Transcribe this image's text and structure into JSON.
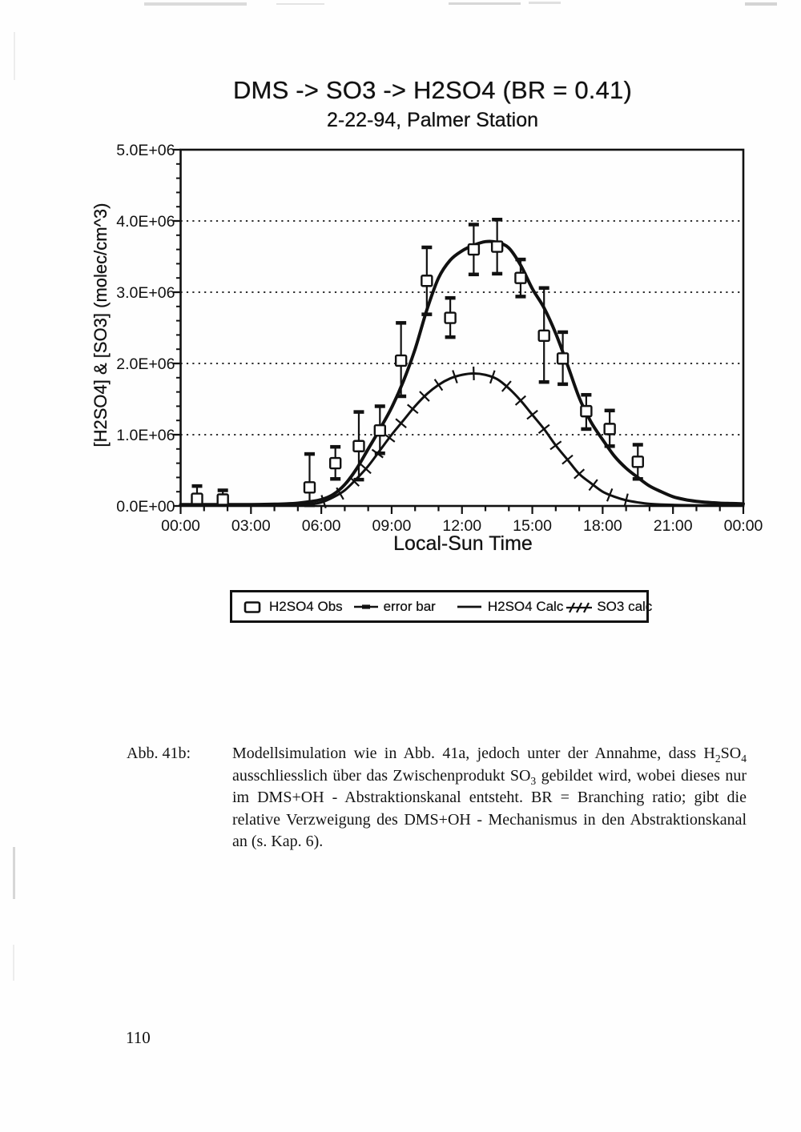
{
  "page": {
    "number": "110"
  },
  "figure": {
    "title": "DMS -> SO3 -> H2SO4 (BR = 0.41)",
    "subtitle": "2-22-94, Palmer Station"
  },
  "chart_data": {
    "type": "line",
    "title": "DMS -> SO3 -> H2SO4 (BR = 0.41)",
    "subtitle": "2-22-94, Palmer Station",
    "xlabel": "Local-Sun Time",
    "ylabel": "[H2SO4] & [SO3] (molec/cm^3)",
    "unit": "molec/cm^3",
    "x_hours_range": [
      0,
      24
    ],
    "ylim": [
      0,
      5000000.0
    ],
    "grid": "horizontal dotted lines at 1.0E+06 steps",
    "x_ticks": [
      {
        "label": "00:00",
        "hour": 0
      },
      {
        "label": "03:00",
        "hour": 3
      },
      {
        "label": "06:00",
        "hour": 6
      },
      {
        "label": "09:00",
        "hour": 9
      },
      {
        "label": "12:00",
        "hour": 12
      },
      {
        "label": "15:00",
        "hour": 15
      },
      {
        "label": "18:00",
        "hour": 18
      },
      {
        "label": "21:00",
        "hour": 21
      },
      {
        "label": "00:00",
        "hour": 24
      }
    ],
    "y_ticks": [
      {
        "label": "0.0E+00",
        "value": 0
      },
      {
        "label": "1.0E+06",
        "value": 1000000.0
      },
      {
        "label": "2.0E+06",
        "value": 2000000.0
      },
      {
        "label": "3.0E+06",
        "value": 3000000.0
      },
      {
        "label": "4.0E+06",
        "value": 4000000.0
      },
      {
        "label": "5.0E+06",
        "value": 5000000.0
      }
    ],
    "series": [
      {
        "name": "H2SO4 Calc",
        "style": "solid-line",
        "points_hour_value": [
          [
            0,
            20000.0
          ],
          [
            1,
            20000.0
          ],
          [
            2,
            20000.0
          ],
          [
            3,
            20000.0
          ],
          [
            4,
            25000.0
          ],
          [
            4.5,
            30000.0
          ],
          [
            5,
            40000.0
          ],
          [
            5.5,
            60000.0
          ],
          [
            6,
            90000.0
          ],
          [
            6.5,
            160000.0
          ],
          [
            7,
            300000.0
          ],
          [
            7.5,
            520000.0
          ],
          [
            8,
            800000.0
          ],
          [
            8.5,
            1080000.0
          ],
          [
            9,
            1380000.0
          ],
          [
            9.5,
            1750000.0
          ],
          [
            10,
            2200000.0
          ],
          [
            10.5,
            2750000.0
          ],
          [
            11,
            3200000.0
          ],
          [
            11.5,
            3450000.0
          ],
          [
            12,
            3580000.0
          ],
          [
            12.5,
            3660000.0
          ],
          [
            13,
            3710000.0
          ],
          [
            13.5,
            3700000.0
          ],
          [
            14,
            3620000.0
          ],
          [
            14.5,
            3380000.0
          ],
          [
            15,
            3050000.0
          ],
          [
            15.5,
            2780000.0
          ],
          [
            16,
            2420000.0
          ],
          [
            16.5,
            1980000.0
          ],
          [
            17,
            1520000.0
          ],
          [
            17.5,
            1180000.0
          ],
          [
            18,
            930000.0
          ],
          [
            18.5,
            700000.0
          ],
          [
            19,
            530000.0
          ],
          [
            19.5,
            400000.0
          ],
          [
            20,
            280000.0
          ],
          [
            20.5,
            200000.0
          ],
          [
            21,
            130000.0
          ],
          [
            21.5,
            90000.0
          ],
          [
            22,
            65000.0
          ],
          [
            22.5,
            50000.0
          ],
          [
            23,
            40000.0
          ],
          [
            23.5,
            35000.0
          ],
          [
            24,
            30000.0
          ]
        ]
      },
      {
        "name": "SO3 calc",
        "style": "hatched-line",
        "points_hour_value": [
          [
            0,
            10000.0
          ],
          [
            2,
            10000.0
          ],
          [
            4,
            10000.0
          ],
          [
            5,
            15000.0
          ],
          [
            5.5,
            25000.0
          ],
          [
            6,
            50000.0
          ],
          [
            6.5,
            120000.0
          ],
          [
            7,
            220000.0
          ],
          [
            7.5,
            380000.0
          ],
          [
            8,
            560000.0
          ],
          [
            8.5,
            780000.0
          ],
          [
            9,
            1000000.0
          ],
          [
            9.5,
            1200000.0
          ],
          [
            10,
            1400000.0
          ],
          [
            10.5,
            1570000.0
          ],
          [
            11,
            1700000.0
          ],
          [
            11.5,
            1790000.0
          ],
          [
            12,
            1840000.0
          ],
          [
            12.5,
            1860000.0
          ],
          [
            13,
            1840000.0
          ],
          [
            13.5,
            1780000.0
          ],
          [
            14,
            1650000.0
          ],
          [
            14.5,
            1480000.0
          ],
          [
            15,
            1280000.0
          ],
          [
            15.5,
            1080000.0
          ],
          [
            16,
            850000.0
          ],
          [
            16.5,
            650000.0
          ],
          [
            17,
            450000.0
          ],
          [
            17.5,
            320000.0
          ],
          [
            18,
            200000.0
          ],
          [
            18.5,
            130000.0
          ],
          [
            19,
            80000.0
          ],
          [
            19.5,
            50000.0
          ],
          [
            20,
            30000.0
          ],
          [
            21,
            15000.0
          ],
          [
            22,
            10000.0
          ],
          [
            23,
            10000.0
          ],
          [
            24,
            10000.0
          ]
        ]
      }
    ],
    "observations": {
      "name": "H2SO4 Obs",
      "marker": "open-square",
      "error_bars": true,
      "points_hour_value_lo_hi": [
        [
          0.7,
          100000.0,
          20000.0,
          280000.0
        ],
        [
          1.8,
          90000.0,
          30000.0,
          220000.0
        ],
        [
          5.5,
          260000.0,
          10000.0,
          730000.0
        ],
        [
          6.6,
          600000.0,
          380000.0,
          830000.0
        ],
        [
          7.6,
          840000.0,
          370000.0,
          1320000.0
        ],
        [
          8.5,
          1060000.0,
          740000.0,
          1400000.0
        ],
        [
          9.4,
          2040000.0,
          1540000.0,
          2570000.0
        ],
        [
          10.5,
          3160000.0,
          2690000.0,
          3630000.0
        ],
        [
          11.5,
          2640000.0,
          2370000.0,
          2920000.0
        ],
        [
          12.5,
          3600000.0,
          3250000.0,
          3950000.0
        ],
        [
          13.5,
          3640000.0,
          3260000.0,
          4020000.0
        ],
        [
          14.5,
          3200000.0,
          2940000.0,
          3460000.0
        ],
        [
          15.5,
          2390000.0,
          1740000.0,
          3060000.0
        ],
        [
          16.3,
          2070000.0,
          1710000.0,
          2440000.0
        ],
        [
          17.3,
          1330000.0,
          1080000.0,
          1560000.0
        ],
        [
          18.3,
          1080000.0,
          840000.0,
          1340000.0
        ],
        [
          19.5,
          620000.0,
          380000.0,
          860000.0
        ]
      ]
    },
    "legend": {
      "position": "below-chart",
      "entries": [
        {
          "marker": "open-square",
          "label": "H2SO4 Obs"
        },
        {
          "marker": "errorbar-line",
          "label": "error bar"
        },
        {
          "marker": "solid-line",
          "label": "H2SO4 Calc"
        },
        {
          "marker": "hatched-line",
          "label": "SO3 calc"
        }
      ]
    },
    "ink_color": "#111111"
  },
  "caption": {
    "label": "Abb. 41b:",
    "lines": [
      [
        {
          "t": "Modellsimulation wie in Abb. 41a, jedoch unter der Annahme, dass H"
        },
        {
          "t": "2",
          "sub": true
        },
        {
          "t": "SO"
        },
        {
          "t": "4",
          "sub": true
        }
      ],
      [
        {
          "t": "ausschliesslich über das Zwischenprodukt SO"
        },
        {
          "t": "3",
          "sub": true
        },
        {
          "t": " gebildet wird, wobei dieses nur"
        }
      ],
      [
        {
          "t": "im DMS+OH - Abstraktionskanal entsteht. BR = Branching ratio; gibt die"
        }
      ],
      [
        {
          "t": "relative Verzweigung des DMS+OH - Mechanismus in den Abstraktionskanal"
        }
      ],
      [
        {
          "t": "an (s. Kap. 6)."
        }
      ]
    ]
  }
}
